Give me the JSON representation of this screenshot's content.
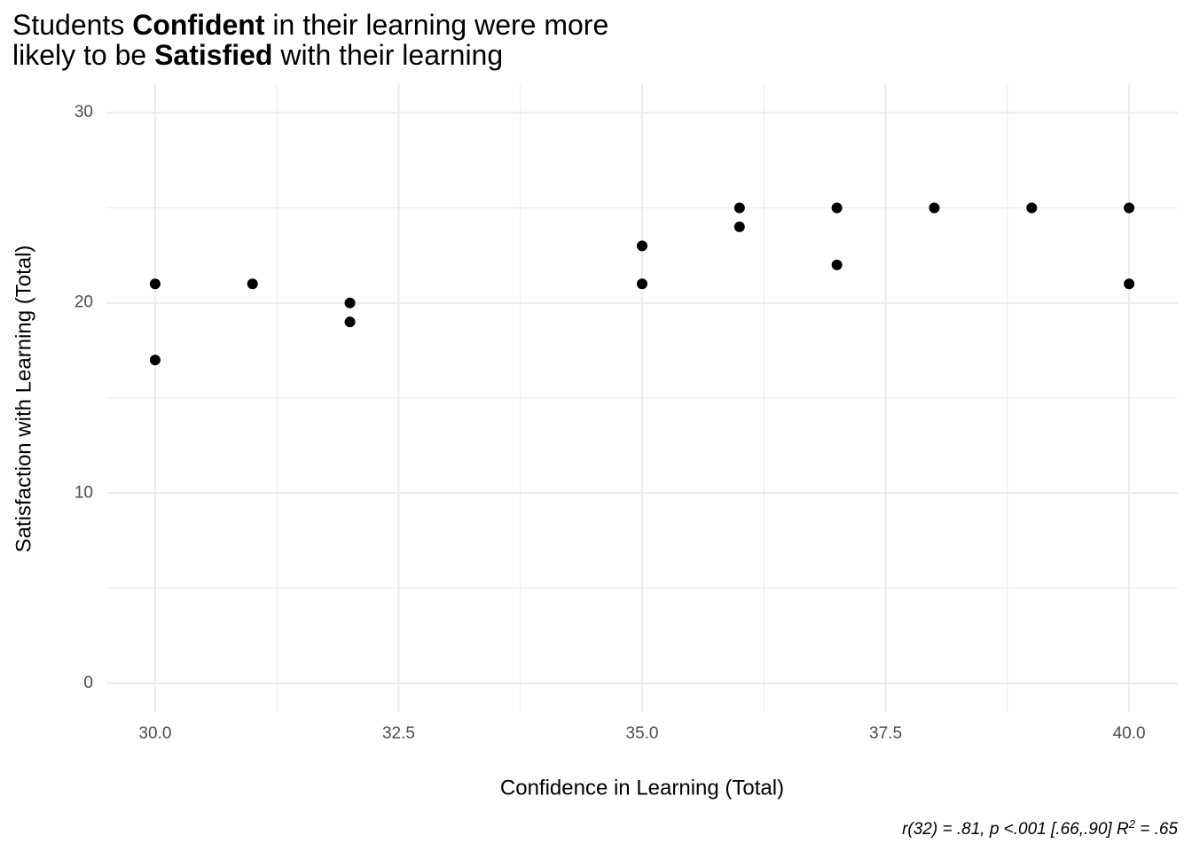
{
  "chart_data": {
    "type": "scatter",
    "title_lines": [
      [
        {
          "text": "Students "
        },
        {
          "text": "Confident",
          "bold": true
        },
        {
          "text": " in their learning were more"
        }
      ],
      [
        {
          "text": "likely to be "
        },
        {
          "text": "Satisfied",
          "bold": true
        },
        {
          "text": " with their learning"
        }
      ]
    ],
    "x_label": "Confidence in Learning (Total)",
    "y_label": "Satisfaction with Learning (Total)",
    "caption": [
      {
        "text": "r(32) = .81, p <.001 [.66,.90] R"
      },
      {
        "text": "2",
        "sup": true
      },
      {
        "text": " = .65"
      }
    ],
    "x": [
      30,
      30,
      31,
      32,
      32,
      35,
      35,
      36,
      36,
      37,
      37,
      38,
      39,
      40,
      40
    ],
    "values": [
      21,
      17,
      21,
      20,
      19,
      23,
      21,
      25,
      24,
      25,
      22,
      25,
      25,
      25,
      21
    ],
    "color": "#000000",
    "xlim": [
      29.5,
      40.5
    ],
    "ylim": [
      -1.5,
      31.5
    ],
    "xticks": [
      {
        "value": 30,
        "label": "30.0"
      },
      {
        "value": 32.5,
        "label": "32.5"
      },
      {
        "value": 35,
        "label": "35.0"
      },
      {
        "value": 37.5,
        "label": "37.5"
      },
      {
        "value": 40,
        "label": "40.0"
      }
    ],
    "yticks": [
      0,
      10,
      20,
      30
    ],
    "xminor": [
      31.25,
      33.75,
      36.25,
      38.75
    ],
    "yminor": [
      5,
      15,
      25
    ],
    "grid": true
  }
}
